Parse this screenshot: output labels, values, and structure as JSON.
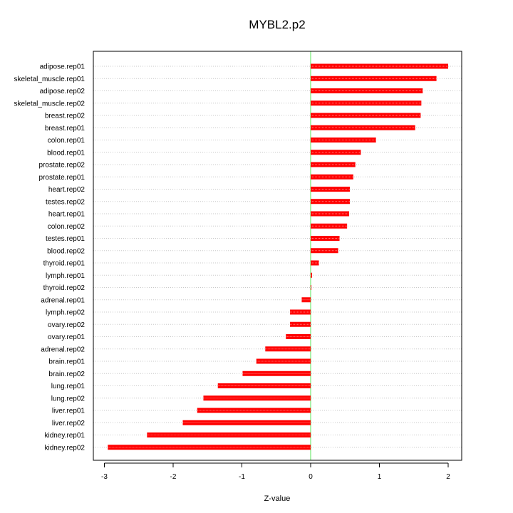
{
  "chart_data": {
    "type": "bar",
    "orientation": "horizontal",
    "title": "MYBL2.p2",
    "xlabel": "Z-value",
    "ylabel": "",
    "xlim": [
      -3.1,
      2.2
    ],
    "xticks": [
      -3,
      -2,
      -1,
      0,
      1,
      2
    ],
    "grid": "horizontal-dotted",
    "zero_line": true,
    "colors": {
      "bar": "#ff0000",
      "bar_highlight": "#ff8080",
      "zero_line": "#90ee90",
      "grid": "#c8c8c8"
    },
    "categories": [
      "adipose.rep01",
      "skeletal_muscle.rep01",
      "adipose.rep02",
      "skeletal_muscle.rep02",
      "breast.rep02",
      "breast.rep01",
      "colon.rep01",
      "blood.rep01",
      "prostate.rep02",
      "prostate.rep01",
      "heart.rep02",
      "testes.rep02",
      "heart.rep01",
      "colon.rep02",
      "testes.rep01",
      "blood.rep02",
      "thyroid.rep01",
      "lymph.rep01",
      "thyroid.rep02",
      "adrenal.rep01",
      "lymph.rep02",
      "ovary.rep02",
      "ovary.rep01",
      "adrenal.rep02",
      "brain.rep01",
      "brain.rep02",
      "lung.rep01",
      "lung.rep02",
      "liver.rep01",
      "liver.rep02",
      "kidney.rep01",
      "kidney.rep02"
    ],
    "values": [
      2.0,
      1.83,
      1.63,
      1.61,
      1.6,
      1.52,
      0.95,
      0.73,
      0.65,
      0.62,
      0.57,
      0.57,
      0.56,
      0.53,
      0.42,
      0.4,
      0.12,
      0.02,
      0.01,
      -0.13,
      -0.3,
      -0.3,
      -0.36,
      -0.66,
      -0.79,
      -0.99,
      -1.35,
      -1.56,
      -1.65,
      -1.86,
      -2.38,
      -2.95
    ]
  }
}
